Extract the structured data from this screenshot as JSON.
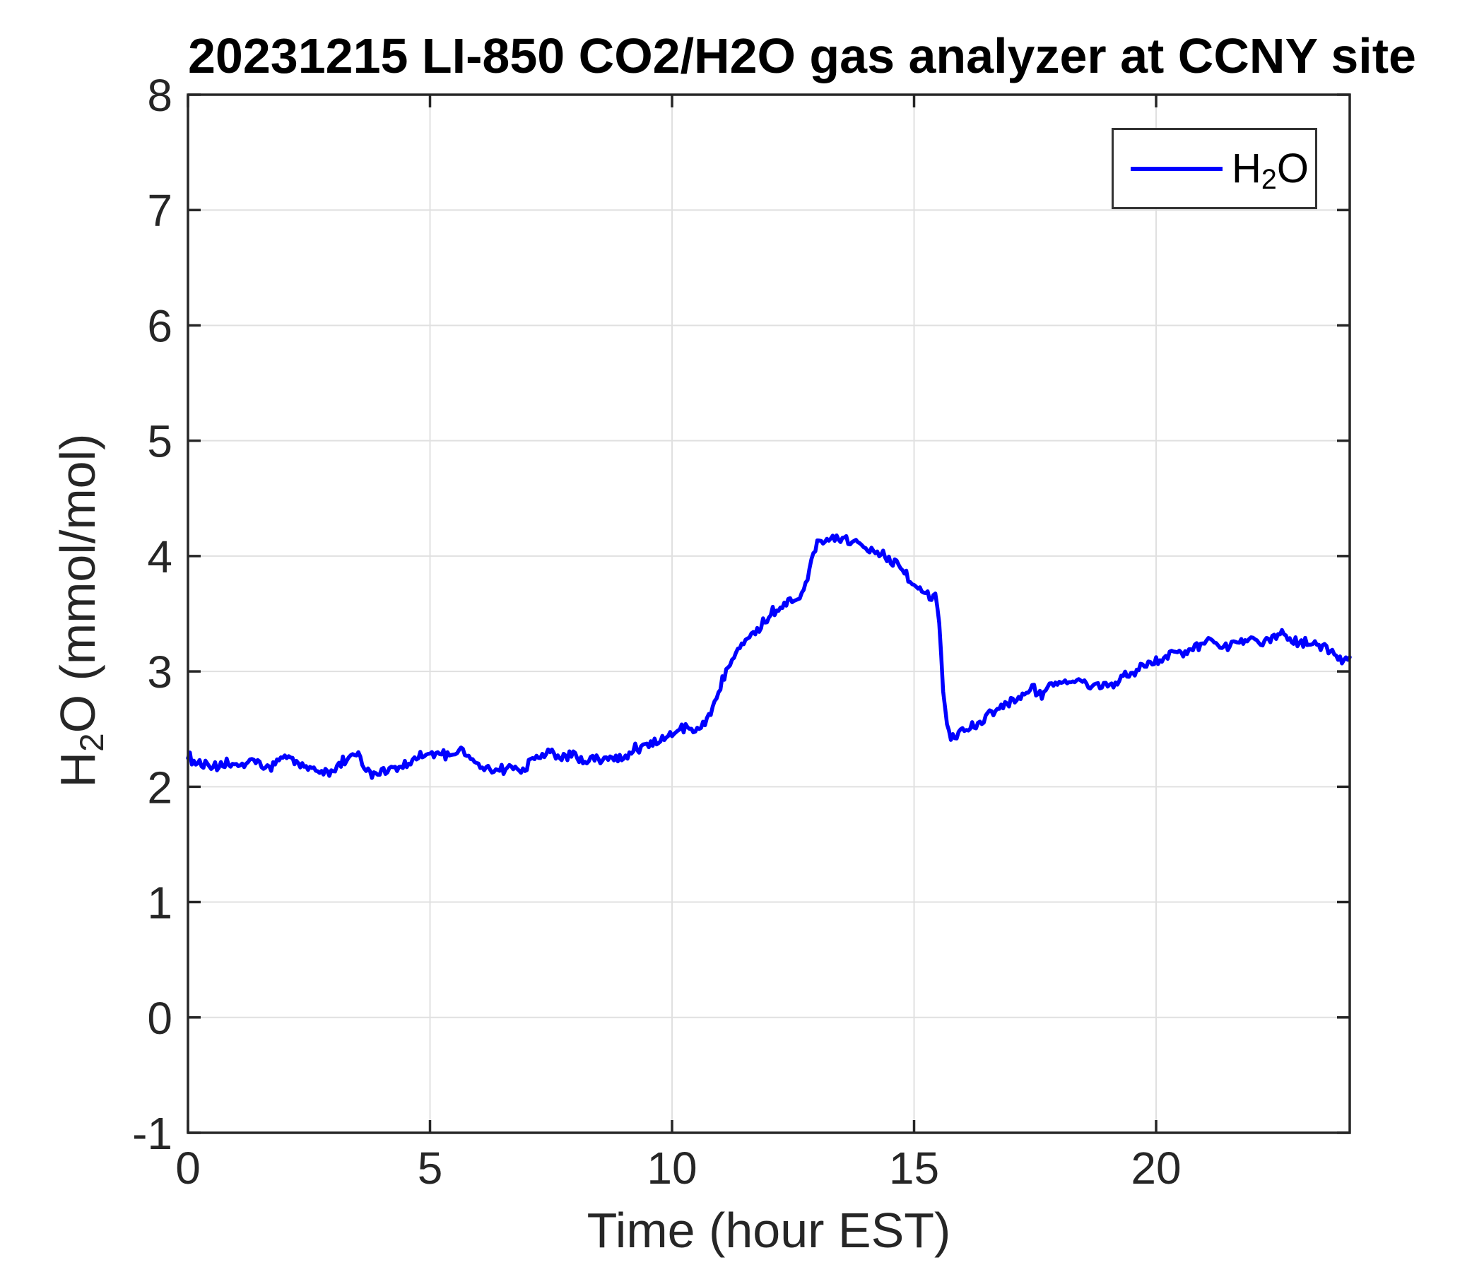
{
  "figure": {
    "title": "20231215 LI-850 CO2/H2O gas analyzer at CCNY site",
    "xlabel": "Time (hour EST)",
    "ylabel_main1": "H",
    "ylabel_sub": "2",
    "ylabel_main2": "O (mmol/mol)",
    "legend": {
      "main1": "H",
      "sub": "2",
      "main2": "O"
    },
    "colors": {
      "line": "#0000FF",
      "axis": "#262626",
      "grid": "#E0E0E0",
      "tick_label": "#262626",
      "background": "#FFFFFF"
    }
  },
  "chart_data": {
    "type": "line",
    "title": "20231215 LI-850 CO2/H2O gas analyzer at CCNY site",
    "xlabel": "Time (hour EST)",
    "ylabel": "H2O (mmol/mol)",
    "xlim": [
      0,
      24
    ],
    "ylim": [
      -1,
      8
    ],
    "xticks": [
      0,
      5,
      10,
      15,
      20
    ],
    "yticks": [
      -1,
      0,
      1,
      2,
      3,
      4,
      5,
      6,
      7,
      8
    ],
    "grid": true,
    "legend_position": "northeast",
    "noise_amplitude": 0.055,
    "series": [
      {
        "name": "H2O",
        "color": "#0000FF",
        "points": [
          [
            0.0,
            2.26
          ],
          [
            0.15,
            2.22
          ],
          [
            0.3,
            2.19
          ],
          [
            0.5,
            2.16
          ],
          [
            0.7,
            2.18
          ],
          [
            0.9,
            2.21
          ],
          [
            1.1,
            2.18
          ],
          [
            1.3,
            2.22
          ],
          [
            1.5,
            2.19
          ],
          [
            1.7,
            2.16
          ],
          [
            1.9,
            2.23
          ],
          [
            2.1,
            2.26
          ],
          [
            2.3,
            2.2
          ],
          [
            2.5,
            2.16
          ],
          [
            2.7,
            2.14
          ],
          [
            2.9,
            2.12
          ],
          [
            3.1,
            2.18
          ],
          [
            3.3,
            2.26
          ],
          [
            3.5,
            2.28
          ],
          [
            3.65,
            2.18
          ],
          [
            3.8,
            2.1
          ],
          [
            4.0,
            2.12
          ],
          [
            4.2,
            2.18
          ],
          [
            4.4,
            2.16
          ],
          [
            4.6,
            2.21
          ],
          [
            4.8,
            2.25
          ],
          [
            5.0,
            2.28
          ],
          [
            5.2,
            2.3
          ],
          [
            5.35,
            2.26
          ],
          [
            5.5,
            2.28
          ],
          [
            5.65,
            2.33
          ],
          [
            5.8,
            2.26
          ],
          [
            6.0,
            2.18
          ],
          [
            6.2,
            2.16
          ],
          [
            6.4,
            2.14
          ],
          [
            6.6,
            2.16
          ],
          [
            6.8,
            2.15
          ],
          [
            7.0,
            2.18
          ],
          [
            7.15,
            2.26
          ],
          [
            7.3,
            2.28
          ],
          [
            7.5,
            2.3
          ],
          [
            7.65,
            2.24
          ],
          [
            7.8,
            2.28
          ],
          [
            8.0,
            2.26
          ],
          [
            8.2,
            2.21
          ],
          [
            8.4,
            2.24
          ],
          [
            8.6,
            2.23
          ],
          [
            8.8,
            2.25
          ],
          [
            9.0,
            2.27
          ],
          [
            9.2,
            2.32
          ],
          [
            9.4,
            2.35
          ],
          [
            9.6,
            2.38
          ],
          [
            9.8,
            2.41
          ],
          [
            10.0,
            2.46
          ],
          [
            10.15,
            2.5
          ],
          [
            10.3,
            2.52
          ],
          [
            10.45,
            2.47
          ],
          [
            10.6,
            2.5
          ],
          [
            10.75,
            2.6
          ],
          [
            10.9,
            2.75
          ],
          [
            11.05,
            2.95
          ],
          [
            11.2,
            3.1
          ],
          [
            11.35,
            3.2
          ],
          [
            11.5,
            3.27
          ],
          [
            11.65,
            3.33
          ],
          [
            11.8,
            3.38
          ],
          [
            11.95,
            3.45
          ],
          [
            12.1,
            3.52
          ],
          [
            12.25,
            3.57
          ],
          [
            12.4,
            3.6
          ],
          [
            12.55,
            3.63
          ],
          [
            12.7,
            3.7
          ],
          [
            12.8,
            3.82
          ],
          [
            12.9,
            4.02
          ],
          [
            13.0,
            4.12
          ],
          [
            13.1,
            4.15
          ],
          [
            13.25,
            4.13
          ],
          [
            13.4,
            4.15
          ],
          [
            13.55,
            4.14
          ],
          [
            13.7,
            4.13
          ],
          [
            13.85,
            4.11
          ],
          [
            14.0,
            4.09
          ],
          [
            14.15,
            4.07
          ],
          [
            14.3,
            4.03
          ],
          [
            14.45,
            3.99
          ],
          [
            14.6,
            3.95
          ],
          [
            14.75,
            3.9
          ],
          [
            14.9,
            3.81
          ],
          [
            15.0,
            3.75
          ],
          [
            15.1,
            3.71
          ],
          [
            15.2,
            3.68
          ],
          [
            15.3,
            3.67
          ],
          [
            15.45,
            3.64
          ],
          [
            15.52,
            3.45
          ],
          [
            15.6,
            2.85
          ],
          [
            15.68,
            2.52
          ],
          [
            15.75,
            2.46
          ],
          [
            15.85,
            2.41
          ],
          [
            15.95,
            2.47
          ],
          [
            16.1,
            2.5
          ],
          [
            16.3,
            2.54
          ],
          [
            16.5,
            2.6
          ],
          [
            16.7,
            2.65
          ],
          [
            16.9,
            2.7
          ],
          [
            17.1,
            2.76
          ],
          [
            17.3,
            2.82
          ],
          [
            17.45,
            2.85
          ],
          [
            17.6,
            2.8
          ],
          [
            17.8,
            2.85
          ],
          [
            18.0,
            2.89
          ],
          [
            18.15,
            2.92
          ],
          [
            18.3,
            2.9
          ],
          [
            18.45,
            2.92
          ],
          [
            18.6,
            2.89
          ],
          [
            18.8,
            2.86
          ],
          [
            19.0,
            2.88
          ],
          [
            19.2,
            2.92
          ],
          [
            19.4,
            2.96
          ],
          [
            19.6,
            3.0
          ],
          [
            19.8,
            3.06
          ],
          [
            20.0,
            3.1
          ],
          [
            20.2,
            3.13
          ],
          [
            20.4,
            3.16
          ],
          [
            20.6,
            3.17
          ],
          [
            20.8,
            3.2
          ],
          [
            21.0,
            3.24
          ],
          [
            21.15,
            3.27
          ],
          [
            21.3,
            3.24
          ],
          [
            21.45,
            3.21
          ],
          [
            21.6,
            3.25
          ],
          [
            21.8,
            3.28
          ],
          [
            22.0,
            3.31
          ],
          [
            22.15,
            3.25
          ],
          [
            22.3,
            3.27
          ],
          [
            22.45,
            3.3
          ],
          [
            22.6,
            3.32
          ],
          [
            22.75,
            3.28
          ],
          [
            22.9,
            3.24
          ],
          [
            23.05,
            3.26
          ],
          [
            23.2,
            3.25
          ],
          [
            23.35,
            3.23
          ],
          [
            23.5,
            3.2
          ],
          [
            23.65,
            3.15
          ],
          [
            23.8,
            3.1
          ],
          [
            23.9,
            3.08
          ],
          [
            24.0,
            3.12
          ]
        ]
      }
    ]
  }
}
